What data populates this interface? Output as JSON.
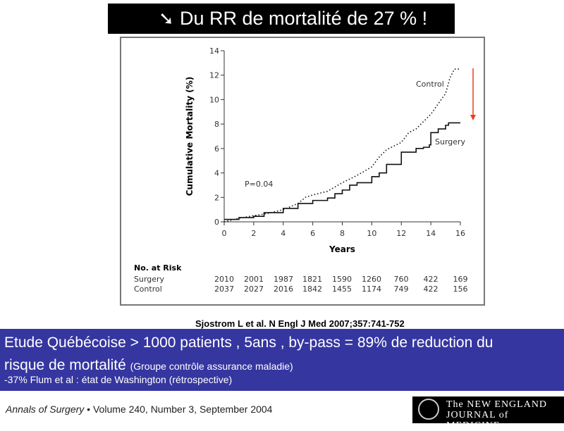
{
  "header": {
    "arrow_icon": "arrow-down-right",
    "title": "Du RR de mortalité de 27 % !"
  },
  "chart_data": {
    "type": "line",
    "xlabel": "Years",
    "ylabel": "Cumulative Mortality (%)",
    "xlim": [
      0,
      16
    ],
    "ylim": [
      0,
      14
    ],
    "xticks": [
      0,
      2,
      4,
      6,
      8,
      10,
      12,
      14,
      16
    ],
    "yticks": [
      0,
      2,
      4,
      6,
      8,
      10,
      12,
      14
    ],
    "annotation": "P=0.04",
    "series": [
      {
        "name": "Control",
        "style": "dotted",
        "points": [
          [
            0,
            0
          ],
          [
            1,
            0.3
          ],
          [
            2,
            0.5
          ],
          [
            3,
            0.7
          ],
          [
            4,
            1.0
          ],
          [
            5,
            1.5
          ],
          [
            5.5,
            2.0
          ],
          [
            6,
            2.2
          ],
          [
            7,
            2.5
          ],
          [
            8,
            3.2
          ],
          [
            9,
            3.8
          ],
          [
            10,
            4.5
          ],
          [
            10.5,
            5.3
          ],
          [
            11,
            5.9
          ],
          [
            12,
            6.5
          ],
          [
            12.5,
            7.3
          ],
          [
            13,
            7.6
          ],
          [
            14,
            8.8
          ],
          [
            14.7,
            10.0
          ],
          [
            15,
            10.5
          ],
          [
            15.3,
            11.8
          ],
          [
            15.6,
            12.5
          ],
          [
            16,
            12.5
          ]
        ]
      },
      {
        "name": "Surgery",
        "style": "solid",
        "points": [
          [
            0,
            0.2
          ],
          [
            1,
            0.35
          ],
          [
            2,
            0.45
          ],
          [
            2.7,
            0.75
          ],
          [
            3.7,
            0.75
          ],
          [
            4,
            1.1
          ],
          [
            5,
            1.5
          ],
          [
            6,
            1.75
          ],
          [
            7,
            1.95
          ],
          [
            7.5,
            2.3
          ],
          [
            8,
            2.6
          ],
          [
            8.5,
            3.0
          ],
          [
            9,
            3.2
          ],
          [
            10,
            3.7
          ],
          [
            10.5,
            4.0
          ],
          [
            11,
            4.7
          ],
          [
            12,
            5.7
          ],
          [
            13,
            6.0
          ],
          [
            13.5,
            6.1
          ],
          [
            13.9,
            6.3
          ],
          [
            14,
            7.3
          ],
          [
            14.5,
            7.6
          ],
          [
            15,
            7.9
          ],
          [
            15.2,
            8.1
          ],
          [
            16,
            8.1
          ]
        ]
      }
    ],
    "arrow_color": "#e8401c",
    "risk_table": {
      "title": "No. at Risk",
      "rows": [
        {
          "label": "Surgery",
          "values": [
            "2010",
            "2001",
            "1987",
            "1821",
            "1590",
            "1260",
            "760",
            "422",
            "169"
          ]
        },
        {
          "label": "Control",
          "values": [
            "2037",
            "2027",
            "2016",
            "1842",
            "1455",
            "1174",
            "749",
            "422",
            "156"
          ]
        }
      ]
    }
  },
  "citation": "Sjostrom L et al. N Engl J Med 2007;357:741-752",
  "band": {
    "line1": "Etude Québécoise > 1000 patients , 5ans , by-pass = 89% de reduction du",
    "line2": "risque de mortalité",
    "line2_note": "(Groupe contrôle assurance maladie)",
    "line3": "-37% Flum et al : état de Washington (rétrospective)",
    "color": "#3636a0"
  },
  "source": {
    "journal": "Annals of Surgery",
    "rest": " • Volume 240, Number 3, September 2004"
  },
  "logo": {
    "line1": "The NEW ENGLAND",
    "line2": "JOURNAL of MEDICINE"
  }
}
